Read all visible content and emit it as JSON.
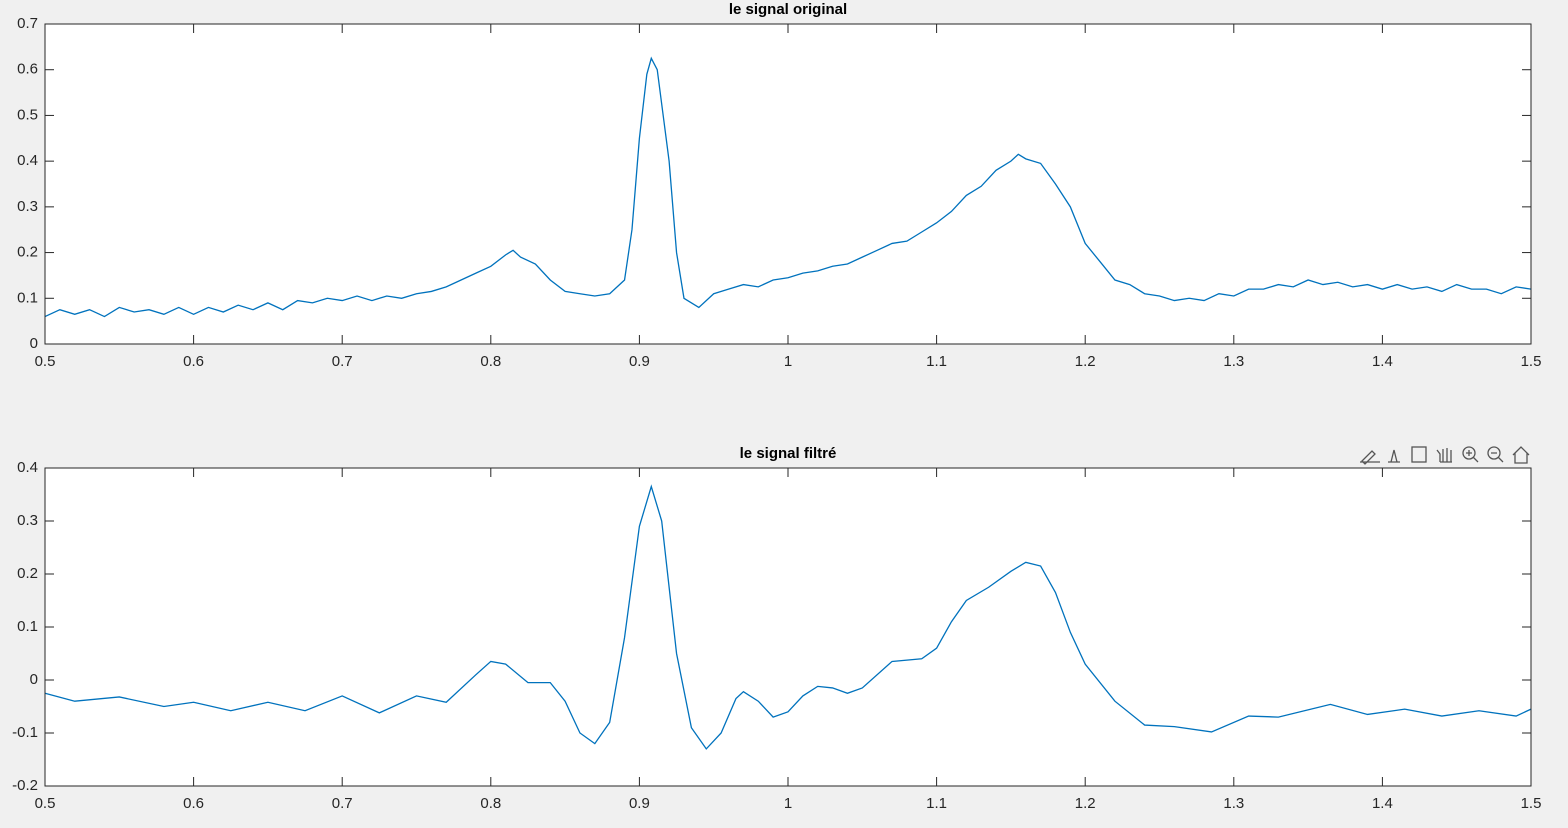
{
  "chart_data": [
    {
      "type": "line",
      "title": "le signal original",
      "color": "#0072bd",
      "x": [
        0.5,
        0.51,
        0.52,
        0.53,
        0.54,
        0.55,
        0.56,
        0.57,
        0.58,
        0.59,
        0.6,
        0.61,
        0.62,
        0.63,
        0.64,
        0.65,
        0.66,
        0.67,
        0.68,
        0.69,
        0.7,
        0.71,
        0.72,
        0.73,
        0.74,
        0.75,
        0.76,
        0.77,
        0.78,
        0.79,
        0.8,
        0.81,
        0.815,
        0.82,
        0.83,
        0.84,
        0.85,
        0.86,
        0.87,
        0.88,
        0.89,
        0.895,
        0.9,
        0.905,
        0.908,
        0.912,
        0.92,
        0.925,
        0.93,
        0.94,
        0.95,
        0.96,
        0.97,
        0.98,
        0.99,
        1.0,
        1.01,
        1.02,
        1.03,
        1.04,
        1.05,
        1.06,
        1.07,
        1.08,
        1.09,
        1.1,
        1.11,
        1.12,
        1.13,
        1.14,
        1.15,
        1.155,
        1.16,
        1.17,
        1.18,
        1.19,
        1.2,
        1.21,
        1.22,
        1.23,
        1.24,
        1.25,
        1.26,
        1.27,
        1.28,
        1.29,
        1.3,
        1.31,
        1.32,
        1.33,
        1.34,
        1.35,
        1.36,
        1.37,
        1.38,
        1.39,
        1.4,
        1.41,
        1.42,
        1.43,
        1.44,
        1.45,
        1.46,
        1.47,
        1.48,
        1.49,
        1.5
      ],
      "values": [
        0.06,
        0.075,
        0.065,
        0.075,
        0.06,
        0.08,
        0.07,
        0.075,
        0.065,
        0.08,
        0.065,
        0.08,
        0.07,
        0.085,
        0.075,
        0.09,
        0.075,
        0.095,
        0.09,
        0.1,
        0.095,
        0.105,
        0.095,
        0.105,
        0.1,
        0.11,
        0.115,
        0.125,
        0.14,
        0.155,
        0.17,
        0.195,
        0.205,
        0.19,
        0.175,
        0.14,
        0.115,
        0.11,
        0.105,
        0.11,
        0.14,
        0.25,
        0.45,
        0.59,
        0.625,
        0.6,
        0.4,
        0.2,
        0.1,
        0.08,
        0.11,
        0.12,
        0.13,
        0.125,
        0.14,
        0.145,
        0.155,
        0.16,
        0.17,
        0.175,
        0.19,
        0.205,
        0.22,
        0.225,
        0.245,
        0.265,
        0.29,
        0.325,
        0.345,
        0.38,
        0.4,
        0.415,
        0.405,
        0.395,
        0.35,
        0.3,
        0.22,
        0.18,
        0.14,
        0.13,
        0.11,
        0.105,
        0.095,
        0.1,
        0.095,
        0.11,
        0.105,
        0.12,
        0.12,
        0.13,
        0.125,
        0.14,
        0.13,
        0.135,
        0.125,
        0.13,
        0.12,
        0.13,
        0.12,
        0.125,
        0.115,
        0.13,
        0.12,
        0.12,
        0.11,
        0.125,
        0.12
      ],
      "xlim": [
        0.5,
        1.5
      ],
      "ylim": [
        0,
        0.7
      ],
      "xticks": [
        0.5,
        0.6,
        0.7,
        0.8,
        0.9,
        1,
        1.1,
        1.2,
        1.3,
        1.4,
        1.5
      ],
      "yticks": [
        0,
        0.1,
        0.2,
        0.3,
        0.4,
        0.5,
        0.6,
        0.7
      ]
    },
    {
      "type": "line",
      "title": "le signal filtré",
      "color": "#0072bd",
      "x": [
        0.5,
        0.52,
        0.55,
        0.58,
        0.6,
        0.625,
        0.65,
        0.675,
        0.7,
        0.725,
        0.75,
        0.77,
        0.79,
        0.8,
        0.81,
        0.825,
        0.84,
        0.85,
        0.86,
        0.87,
        0.88,
        0.89,
        0.9,
        0.908,
        0.915,
        0.925,
        0.935,
        0.945,
        0.955,
        0.965,
        0.97,
        0.98,
        0.99,
        1.0,
        1.01,
        1.02,
        1.03,
        1.04,
        1.05,
        1.07,
        1.09,
        1.1,
        1.11,
        1.12,
        1.135,
        1.15,
        1.16,
        1.17,
        1.18,
        1.19,
        1.2,
        1.22,
        1.24,
        1.26,
        1.285,
        1.31,
        1.33,
        1.365,
        1.39,
        1.415,
        1.44,
        1.465,
        1.49,
        1.5
      ],
      "values": [
        -0.025,
        -0.04,
        -0.032,
        -0.05,
        -0.042,
        -0.058,
        -0.042,
        -0.058,
        -0.03,
        -0.062,
        -0.03,
        -0.042,
        0.01,
        0.035,
        0.03,
        -0.005,
        -0.005,
        -0.04,
        -0.1,
        -0.12,
        -0.08,
        0.08,
        0.29,
        0.365,
        0.3,
        0.05,
        -0.09,
        -0.13,
        -0.1,
        -0.035,
        -0.022,
        -0.04,
        -0.07,
        -0.06,
        -0.03,
        -0.012,
        -0.015,
        -0.025,
        -0.015,
        0.035,
        0.04,
        0.06,
        0.11,
        0.15,
        0.175,
        0.205,
        0.222,
        0.215,
        0.165,
        0.09,
        0.03,
        -0.04,
        -0.085,
        -0.088,
        -0.098,
        -0.068,
        -0.07,
        -0.046,
        -0.065,
        -0.055,
        -0.068,
        -0.058,
        -0.068,
        -0.055
      ],
      "xlim": [
        0.5,
        1.5
      ],
      "ylim": [
        -0.2,
        0.4
      ],
      "xticks": [
        0.5,
        0.6,
        0.7,
        0.8,
        0.9,
        1,
        1.1,
        1.2,
        1.3,
        1.4,
        1.5
      ],
      "yticks": [
        -0.2,
        -0.1,
        0,
        0.1,
        0.2,
        0.3,
        0.4
      ]
    }
  ]
}
